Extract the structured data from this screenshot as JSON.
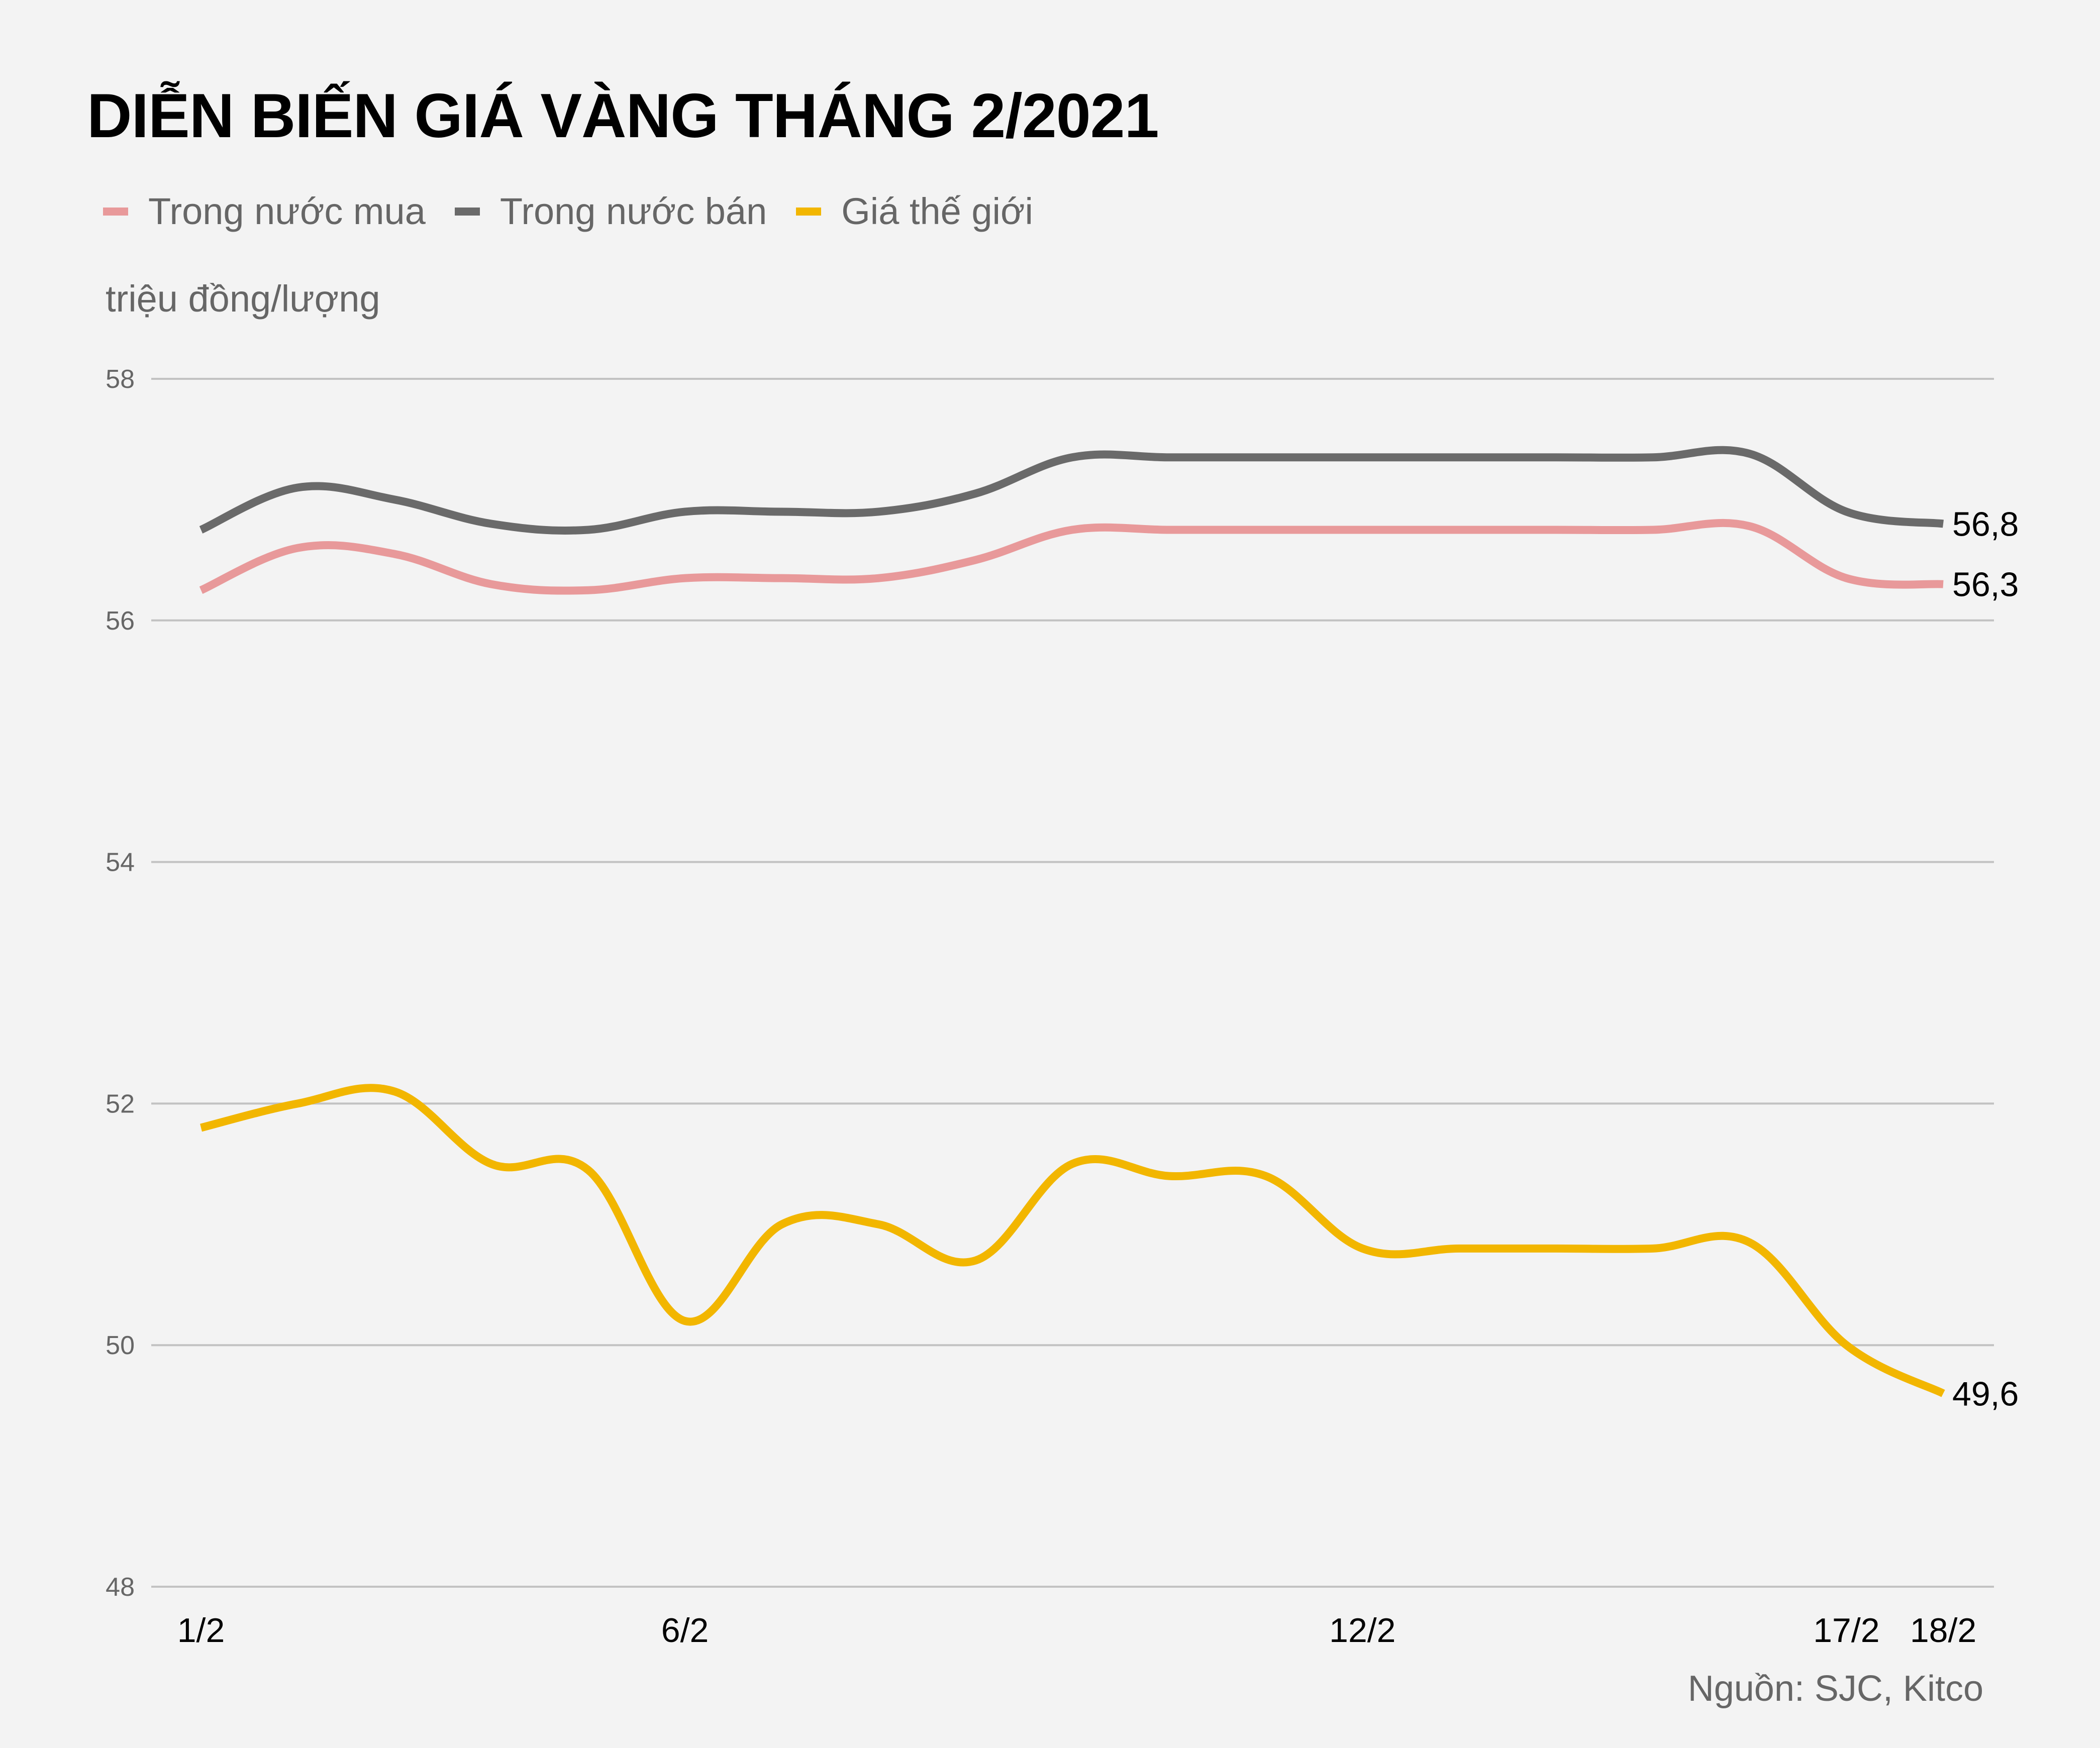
{
  "title": "DIỄN BIẾN GIÁ VÀNG THÁNG 2/2021",
  "legend": [
    {
      "label": "Trong nước mua",
      "color": "#e8999a"
    },
    {
      "label": "Trong nước bán",
      "color": "#6a6a6a"
    },
    {
      "label": "Giá thế giới",
      "color": "#f2b600"
    }
  ],
  "unit_label": "triệu đồng/lượng",
  "source": "Nguồn: SJC, Kitco",
  "chart_data": {
    "type": "line",
    "title": "DIỄN BIẾN GIÁ VÀNG THÁNG 2/2021",
    "xlabel": "",
    "ylabel": "triệu đồng/lượng",
    "ylim": [
      48,
      58
    ],
    "yticks": [
      48,
      50,
      52,
      54,
      56,
      58
    ],
    "grid": true,
    "legend_position": "top-left",
    "x_tick_labels": [
      {
        "index": 0,
        "label": "1/2"
      },
      {
        "index": 5,
        "label": "6/2"
      },
      {
        "index": 12,
        "label": "12/2"
      },
      {
        "index": 17,
        "label": "17/2"
      },
      {
        "index": 18,
        "label": "18/2"
      }
    ],
    "point_count": 19,
    "series": [
      {
        "name": "Trong nước mua",
        "color": "#e8999a",
        "values": [
          56.25,
          56.6,
          56.55,
          56.3,
          56.25,
          56.35,
          56.35,
          56.35,
          56.5,
          56.75,
          56.75,
          56.75,
          56.75,
          56.75,
          56.75,
          56.75,
          56.78,
          56.35,
          56.3
        ],
        "end_label": "56,3"
      },
      {
        "name": "Trong nước bán",
        "color": "#6a6a6a",
        "values": [
          56.75,
          57.1,
          57.0,
          56.8,
          56.75,
          56.9,
          56.9,
          56.9,
          57.05,
          57.35,
          57.35,
          57.35,
          57.35,
          57.35,
          57.35,
          57.35,
          57.38,
          56.9,
          56.8
        ],
        "end_label": "56,8"
      },
      {
        "name": "Giá thế giới",
        "color": "#f2b600",
        "values": [
          51.8,
          52.0,
          52.1,
          51.5,
          51.45,
          50.2,
          51.0,
          51.0,
          50.7,
          51.5,
          51.4,
          51.4,
          50.8,
          50.8,
          50.8,
          50.8,
          50.85,
          50.0,
          49.6
        ],
        "end_label": "49,6"
      }
    ]
  }
}
